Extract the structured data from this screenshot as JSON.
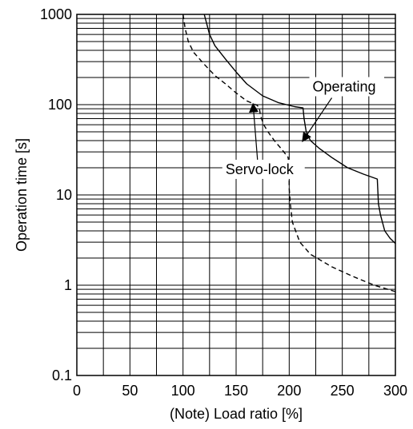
{
  "chart_data": {
    "type": "line",
    "title": "",
    "xlabel": "(Note) Load ratio [%]",
    "ylabel": "Operation time [s]",
    "xlim": [
      0,
      300
    ],
    "ylim": [
      0.1,
      1000
    ],
    "y_scale": "log",
    "grid": true,
    "x_ticks": [
      0,
      50,
      100,
      150,
      200,
      250,
      300
    ],
    "x_tick_labels": [
      "0",
      "50",
      "100",
      "150",
      "200",
      "250",
      "300"
    ],
    "y_ticks": [
      0.1,
      1,
      10,
      100,
      1000
    ],
    "y_tick_labels": [
      "0.1",
      "1",
      "10",
      "100",
      "1000"
    ],
    "series": [
      {
        "name": "Operating",
        "line_style": "solid",
        "color": "#000000",
        "points": [
          [
            120,
            1000
          ],
          [
            125,
            600
          ],
          [
            130,
            450
          ],
          [
            140,
            320
          ],
          [
            150,
            230
          ],
          [
            160,
            170
          ],
          [
            175,
            125
          ],
          [
            190,
            105
          ],
          [
            205,
            95
          ],
          [
            213,
            92
          ],
          [
            214,
            70
          ],
          [
            216,
            50
          ],
          [
            220,
            40
          ],
          [
            228,
            33
          ],
          [
            240,
            26
          ],
          [
            255,
            20
          ],
          [
            270,
            17
          ],
          [
            283,
            15
          ],
          [
            284,
            8
          ],
          [
            286,
            6
          ],
          [
            290,
            4
          ],
          [
            295,
            3.3
          ],
          [
            300,
            2.9
          ]
        ]
      },
      {
        "name": "Servo-lock",
        "line_style": "dashed",
        "color": "#000000",
        "points": [
          [
            100,
            1000
          ],
          [
            102,
            700
          ],
          [
            105,
            500
          ],
          [
            110,
            380
          ],
          [
            120,
            280
          ],
          [
            130,
            210
          ],
          [
            140,
            170
          ],
          [
            150,
            135
          ],
          [
            160,
            110
          ],
          [
            170,
            98
          ],
          [
            172,
            90
          ],
          [
            173,
            75
          ],
          [
            176,
            60
          ],
          [
            180,
            50
          ],
          [
            186,
            40
          ],
          [
            193,
            32
          ],
          [
            199,
            26
          ],
          [
            200,
            20
          ],
          [
            200,
            12
          ],
          [
            201,
            8
          ],
          [
            203,
            5
          ],
          [
            210,
            3
          ],
          [
            220,
            2.2
          ],
          [
            240,
            1.6
          ],
          [
            260,
            1.25
          ],
          [
            280,
            1.0
          ],
          [
            300,
            0.85
          ]
        ]
      }
    ],
    "annotations": [
      {
        "name": "Operating",
        "text": "Operating",
        "label_pos": [
          222,
          140
        ],
        "arrow_to": [
          213,
          40
        ]
      },
      {
        "name": "Servo-lock",
        "text": "Servo-lock",
        "label_pos": [
          140,
          17
        ],
        "arrow_to": [
          166,
          100
        ]
      }
    ]
  }
}
